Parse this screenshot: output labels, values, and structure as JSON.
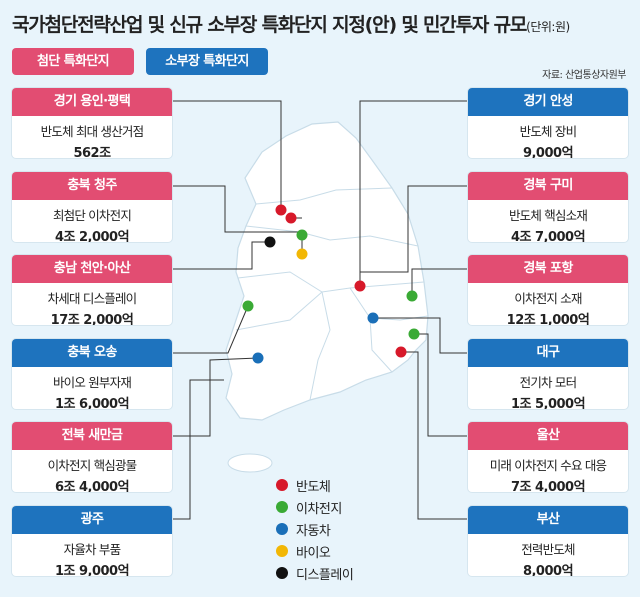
{
  "title": "국가첨단전략산업 및 신규 소부장 특화단지 지정(안) 및 민간투자 규모",
  "unit": "(단위:원)",
  "tags": {
    "advanced": "첨단 특화단지",
    "sobujang": "소부장 특화단지"
  },
  "source": "자료: 산업통상자원부",
  "colors": {
    "red": "#e24d72",
    "blue": "#1e73be"
  },
  "left_cards": [
    {
      "name": "경기 용인·평택",
      "desc": "반도체 최대 생산거점",
      "amount": "562조",
      "type": "advanced"
    },
    {
      "name": "충북 청주",
      "desc": "최첨단 이차전지",
      "amount": "4조 2,000억",
      "type": "advanced"
    },
    {
      "name": "충남 천안·아산",
      "desc": "차세대 디스플레이",
      "amount": "17조 2,000억",
      "type": "advanced"
    },
    {
      "name": "충북 오송",
      "desc": "바이오 원부자재",
      "amount": "1조 6,000억",
      "type": "sobujang"
    },
    {
      "name": "전북 새만금",
      "desc": "이차전지 핵심광물",
      "amount": "6조 4,000억",
      "type": "advanced"
    },
    {
      "name": "광주",
      "desc": "자율차 부품",
      "amount": "1조 9,000억",
      "type": "sobujang"
    }
  ],
  "right_cards": [
    {
      "name": "경기 안성",
      "desc": "반도체 장비",
      "amount": "9,000억",
      "type": "sobujang"
    },
    {
      "name": "경북 구미",
      "desc": "반도체 핵심소재",
      "amount": "4조 7,000억",
      "type": "advanced"
    },
    {
      "name": "경북 포항",
      "desc": "이차전지 소재",
      "amount": "12조 1,000억",
      "type": "advanced"
    },
    {
      "name": "대구",
      "desc": "전기차 모터",
      "amount": "1조 5,000억",
      "type": "sobujang"
    },
    {
      "name": "울산",
      "desc": "미래 이차전지 수요 대응",
      "amount": "7조 4,000억",
      "type": "advanced"
    },
    {
      "name": "부산",
      "desc": "전력반도체",
      "amount": "8,000억",
      "type": "sobujang"
    }
  ],
  "legend": [
    {
      "label": "반도체",
      "color": "#d7192a"
    },
    {
      "label": "이차전지",
      "color": "#3aaa35"
    },
    {
      "label": "자동차",
      "color": "#1a6fb8"
    },
    {
      "label": "바이오",
      "color": "#f2b705"
    },
    {
      "label": "디스플레이",
      "color": "#111111"
    }
  ]
}
